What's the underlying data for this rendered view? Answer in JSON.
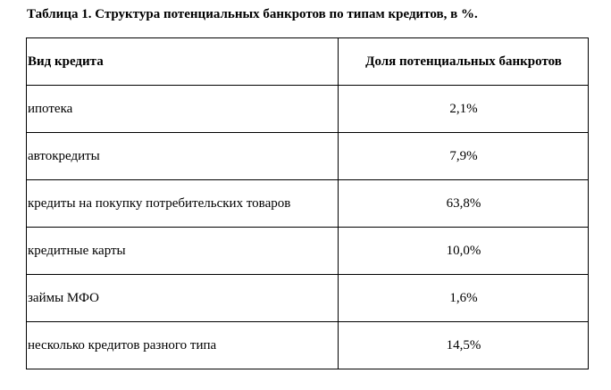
{
  "title": "Таблица 1. Структура потенциальных банкротов по типам кредитов, в %.",
  "table": {
    "header": [
      "Вид кредита",
      "Доля потенциальных банкротов"
    ],
    "rows": [
      [
        "ипотека",
        "2,1%"
      ],
      [
        "автокредиты",
        "7,9%"
      ],
      [
        "кредиты на покупку потребительских товаров",
        "63,8%"
      ],
      [
        "кредитные карты",
        "10,0%"
      ],
      [
        "займы МФО",
        "1,6%"
      ],
      [
        "несколько кредитов разного типа",
        "14,5%"
      ]
    ]
  }
}
